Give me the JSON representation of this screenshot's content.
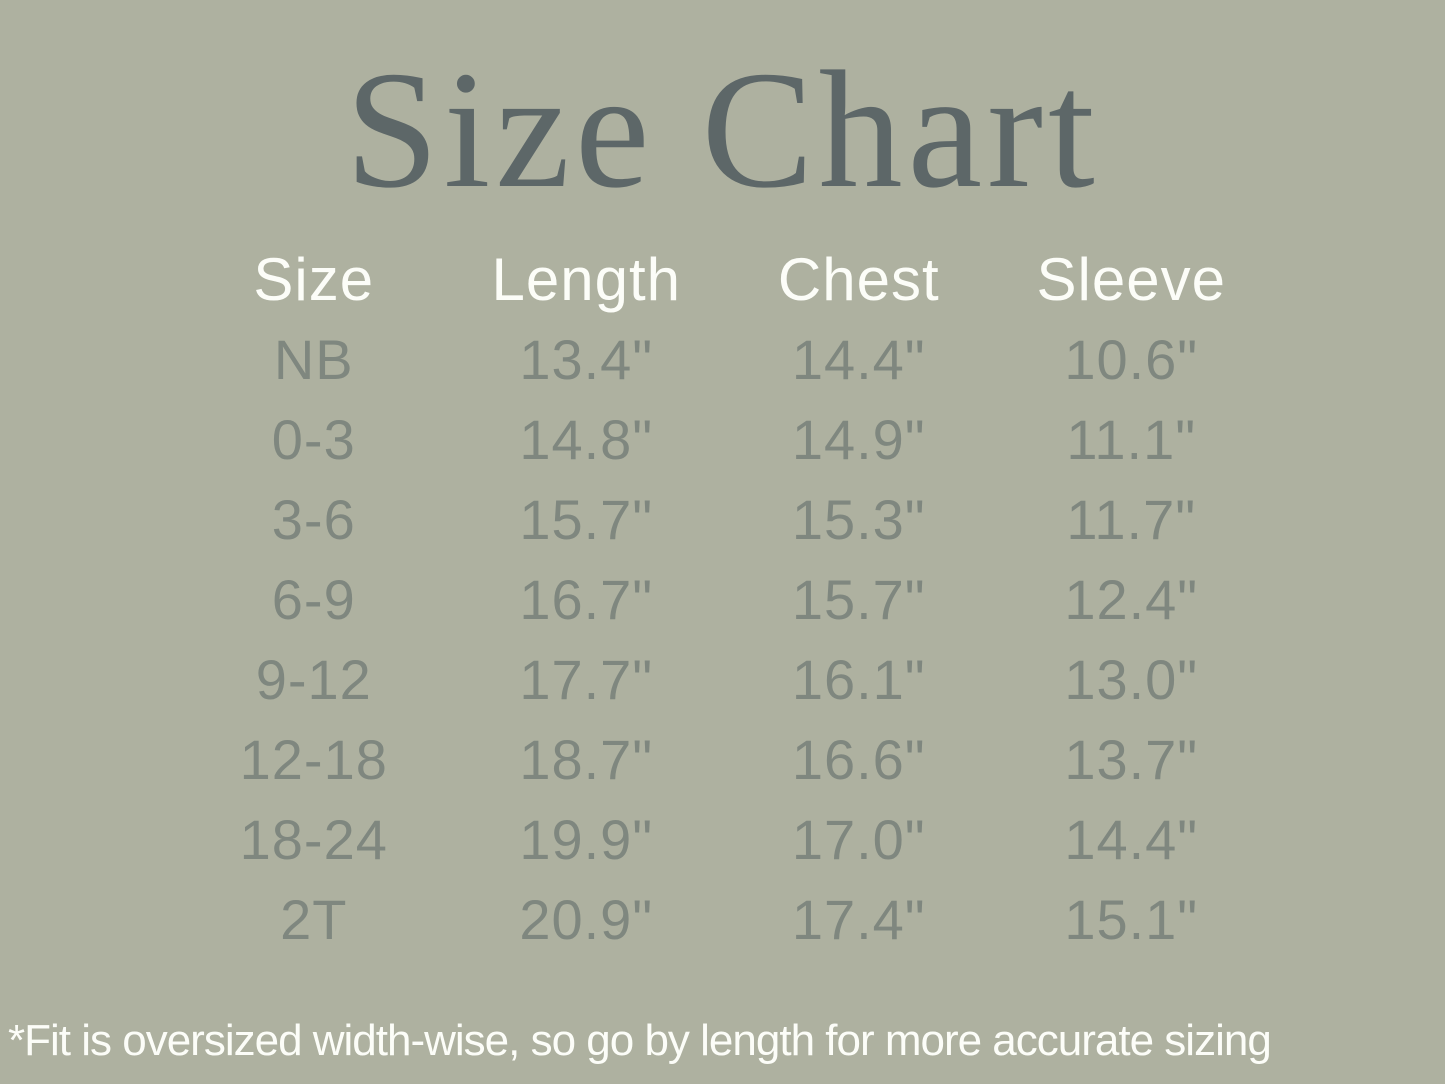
{
  "page": {
    "title": "Size Chart",
    "footnote": "*Fit is oversized width-wise, so go by length for more accurate sizing"
  },
  "colors": {
    "background": "#aeb1a0",
    "title_text": "#5d6768",
    "header_text": "#fcfdf8",
    "value_text": "#7f877f",
    "footnote_text": "#fcfdf8"
  },
  "table": {
    "headers": [
      "Size",
      "Length",
      "Chest",
      "Sleeve"
    ],
    "rows": [
      [
        "NB",
        "13.4\"",
        "14.4\"",
        "10.6\""
      ],
      [
        "0-3",
        "14.8\"",
        "14.9\"",
        "11.1\""
      ],
      [
        "3-6",
        "15.7\"",
        "15.3\"",
        "11.7\""
      ],
      [
        "6-9",
        "16.7\"",
        "15.7\"",
        "12.4\""
      ],
      [
        "9-12",
        "17.7\"",
        "16.1\"",
        "13.0\""
      ],
      [
        "12-18",
        "18.7\"",
        "16.6\"",
        "13.7\""
      ],
      [
        "18-24",
        "19.9\"",
        "17.0\"",
        "14.4\""
      ],
      [
        "2T",
        "20.9\"",
        "17.4\"",
        "15.1\""
      ]
    ]
  },
  "chart_data": {
    "type": "table",
    "title": "Size Chart",
    "columns": [
      "Size",
      "Length",
      "Chest",
      "Sleeve"
    ],
    "units": "inches",
    "rows": [
      {
        "size": "NB",
        "length": 13.4,
        "chest": 14.4,
        "sleeve": 10.6
      },
      {
        "size": "0-3",
        "length": 14.8,
        "chest": 14.9,
        "sleeve": 11.1
      },
      {
        "size": "3-6",
        "length": 15.7,
        "chest": 15.3,
        "sleeve": 11.7
      },
      {
        "size": "6-9",
        "length": 16.7,
        "chest": 15.7,
        "sleeve": 12.4
      },
      {
        "size": "9-12",
        "length": 17.7,
        "chest": 16.1,
        "sleeve": 13.0
      },
      {
        "size": "12-18",
        "length": 18.7,
        "chest": 16.6,
        "sleeve": 13.7
      },
      {
        "size": "18-24",
        "length": 19.9,
        "chest": 17.0,
        "sleeve": 14.4
      },
      {
        "size": "2T",
        "length": 20.9,
        "chest": 17.4,
        "sleeve": 15.1
      }
    ],
    "footnote": "*Fit is oversized width-wise, so go by length for more accurate sizing"
  }
}
